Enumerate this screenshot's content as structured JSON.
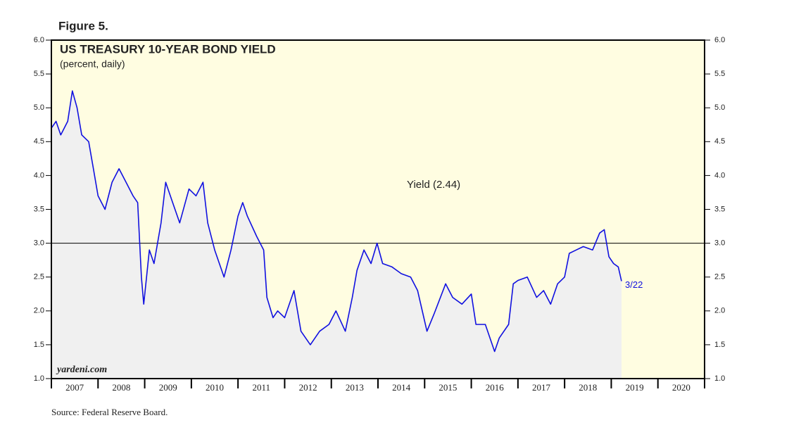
{
  "chart_data": {
    "type": "line",
    "figure_label": "Figure 5.",
    "title": "US TREASURY 10-YEAR BOND YIELD",
    "subtitle": "(percent, daily)",
    "series_label": "Yield (2.44)",
    "end_label": "3/22",
    "watermark": "yardeni.com",
    "source": "Source: Federal Reserve Board.",
    "color": "#1010e0",
    "area_color": "#f0f0f0",
    "background": "#fffde1",
    "hline": 3,
    "x": [
      2007.0,
      2007.1,
      2007.2,
      2007.35,
      2007.45,
      2007.55,
      2007.65,
      2007.8,
      2007.9,
      2008.0,
      2008.15,
      2008.3,
      2008.45,
      2008.6,
      2008.75,
      2008.85,
      2008.93,
      2008.98,
      2009.1,
      2009.2,
      2009.35,
      2009.45,
      2009.6,
      2009.75,
      2009.95,
      2010.1,
      2010.25,
      2010.35,
      2010.5,
      2010.7,
      2010.85,
      2011.0,
      2011.1,
      2011.2,
      2011.4,
      2011.55,
      2011.62,
      2011.75,
      2011.85,
      2012.0,
      2012.2,
      2012.35,
      2012.55,
      2012.75,
      2012.95,
      2013.1,
      2013.3,
      2013.45,
      2013.55,
      2013.7,
      2013.85,
      2013.98,
      2014.1,
      2014.3,
      2014.5,
      2014.7,
      2014.85,
      2015.05,
      2015.2,
      2015.45,
      2015.6,
      2015.8,
      2016.0,
      2016.1,
      2016.3,
      2016.5,
      2016.6,
      2016.8,
      2016.9,
      2017.0,
      2017.2,
      2017.4,
      2017.55,
      2017.7,
      2017.85,
      2018.0,
      2018.1,
      2018.25,
      2018.4,
      2018.6,
      2018.75,
      2018.85,
      2018.95,
      2019.05,
      2019.15,
      2019.22
    ],
    "values": [
      4.7,
      4.8,
      4.6,
      4.8,
      5.25,
      5.0,
      4.6,
      4.5,
      4.1,
      3.7,
      3.5,
      3.9,
      4.1,
      3.9,
      3.7,
      3.6,
      2.5,
      2.1,
      2.9,
      2.7,
      3.3,
      3.9,
      3.6,
      3.3,
      3.8,
      3.7,
      3.9,
      3.3,
      2.9,
      2.5,
      2.9,
      3.4,
      3.6,
      3.4,
      3.1,
      2.9,
      2.2,
      1.9,
      2.0,
      1.9,
      2.3,
      1.7,
      1.5,
      1.7,
      1.8,
      2.0,
      1.7,
      2.2,
      2.6,
      2.9,
      2.7,
      3.0,
      2.7,
      2.65,
      2.55,
      2.5,
      2.3,
      1.7,
      1.95,
      2.4,
      2.2,
      2.1,
      2.25,
      1.8,
      1.8,
      1.4,
      1.6,
      1.8,
      2.4,
      2.45,
      2.5,
      2.2,
      2.3,
      2.1,
      2.4,
      2.5,
      2.85,
      2.9,
      2.95,
      2.9,
      3.15,
      3.2,
      2.8,
      2.7,
      2.65,
      2.44
    ],
    "xlim": [
      2007,
      2021
    ],
    "xticks": [
      2007,
      2008,
      2009,
      2010,
      2011,
      2012,
      2013,
      2014,
      2015,
      2016,
      2017,
      2018,
      2019,
      2020,
      2021
    ],
    "xtick_labels": [
      2007,
      2008,
      2009,
      2010,
      2011,
      2012,
      2013,
      2014,
      2015,
      2016,
      2017,
      2018,
      2019,
      2020
    ],
    "ylim": [
      1,
      6
    ],
    "yticks": [
      {
        "value": 1,
        "label": "1.0"
      },
      {
        "value": 1.5,
        "label": "1.5"
      },
      {
        "value": 2,
        "label": "2.0"
      },
      {
        "value": 2.5,
        "label": "2.5"
      },
      {
        "value": 3,
        "label": "3.0"
      },
      {
        "value": 3.5,
        "label": "3.5"
      },
      {
        "value": 4,
        "label": "4.0"
      },
      {
        "value": 4.5,
        "label": "4.5"
      },
      {
        "value": 5,
        "label": "5.0"
      },
      {
        "value": 5.5,
        "label": "5.5"
      },
      {
        "value": 6,
        "label": "6.0"
      }
    ]
  }
}
